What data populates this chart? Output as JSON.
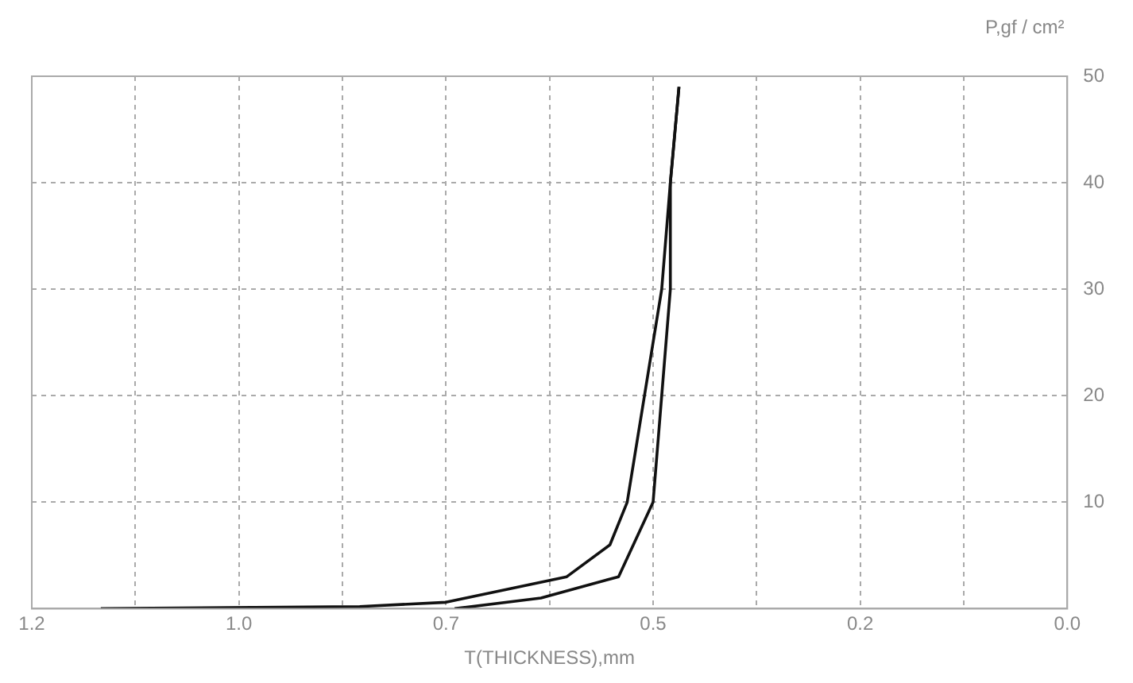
{
  "chart_data": {
    "type": "line",
    "xlabel": "T(THICKNESS),mm",
    "ylabel": "P,gf / cm²",
    "xlim": [
      1.2,
      0
    ],
    "ylim": [
      0,
      50
    ],
    "xticks": [
      {
        "value": 1.2,
        "label": "1.2"
      },
      {
        "value": 1.08,
        "label": null
      },
      {
        "value": 0.96,
        "label": "1.0"
      },
      {
        "value": 0.84,
        "label": null
      },
      {
        "value": 0.72,
        "label": "0.7"
      },
      {
        "value": 0.6,
        "label": null
      },
      {
        "value": 0.48,
        "label": "0.5"
      },
      {
        "value": 0.36,
        "label": null
      },
      {
        "value": 0.24,
        "label": "0.2"
      },
      {
        "value": 0.12,
        "label": null
      },
      {
        "value": 0,
        "label": "0.0"
      }
    ],
    "yticks": [
      10,
      20,
      30,
      40,
      50
    ],
    "grid": "dashed",
    "marker": "none",
    "line_style": "solid",
    "series": [
      {
        "color": "#111111",
        "x": [
          1.12,
          0.82,
          0.72,
          0.58,
          0.53,
          0.51,
          0.49,
          0.47,
          0.46,
          0.45
        ],
        "values": [
          0,
          0.2,
          0.6,
          3,
          6,
          10,
          20,
          30,
          40,
          49
        ]
      },
      {
        "color": "#111111",
        "x": [
          0.71,
          0.61,
          0.52,
          0.48,
          0.47,
          0.46,
          0.46,
          0.45
        ],
        "values": [
          0,
          1,
          3,
          10,
          20,
          30,
          40,
          49
        ]
      }
    ]
  }
}
